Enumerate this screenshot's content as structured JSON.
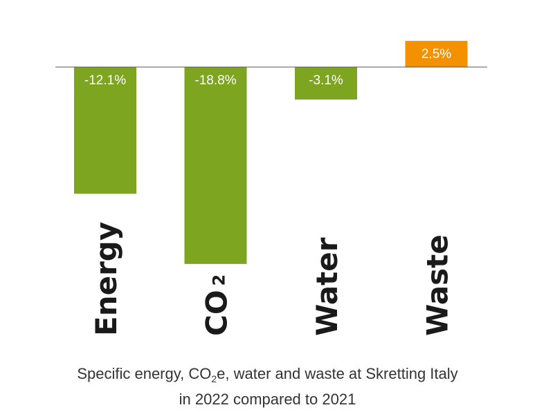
{
  "chart_data": {
    "type": "bar",
    "categories": [
      "Energy",
      "CO2",
      "Water",
      "Waste"
    ],
    "category_labels": [
      {
        "main": "Energy",
        "sub": ""
      },
      {
        "main": "CO",
        "sub": "2"
      },
      {
        "main": "Water",
        "sub": ""
      },
      {
        "main": "Waste",
        "sub": ""
      }
    ],
    "values": [
      -12.1,
      -18.8,
      -3.1,
      2.5
    ],
    "value_labels": [
      "-12.1%",
      "-18.8%",
      "-3.1%",
      "2.5%"
    ],
    "unit": "%",
    "ylim": [
      -19.5,
      4
    ],
    "grid": false,
    "colors": {
      "negative": "#7ea51f",
      "positive": "#f39100",
      "baseline": "#555555"
    }
  },
  "caption": {
    "line1_a": "Specific energy, CO",
    "line1_sub": "2",
    "line1_b": "e, water and waste at Skretting Italy",
    "line2": "in 2022 compared to 2021"
  }
}
